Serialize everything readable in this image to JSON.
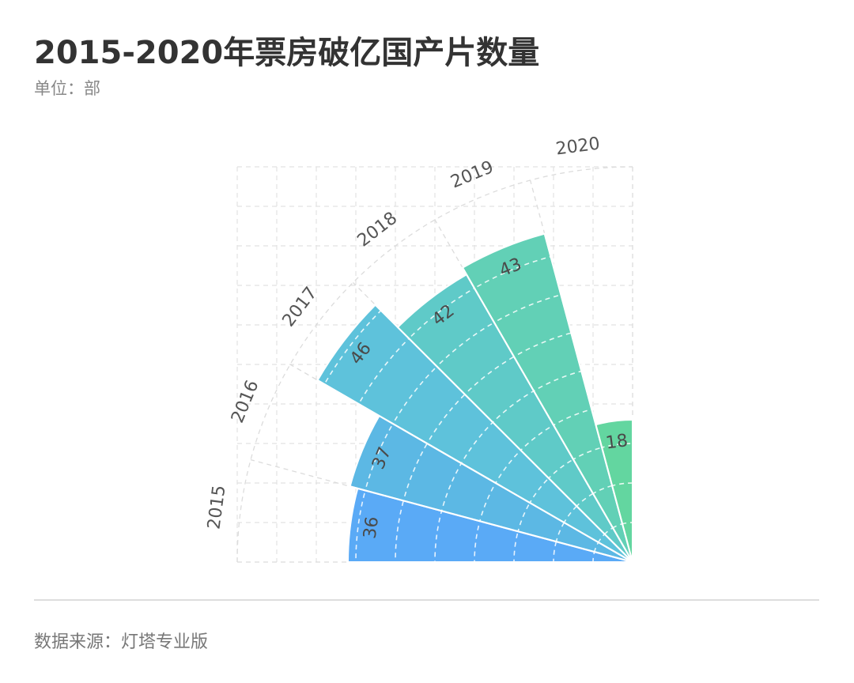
{
  "title": "2015-2020年票房破亿国产片数量",
  "unit": "单位：部",
  "source": "数据来源：灯塔专业版",
  "chart_data": {
    "type": "bar",
    "subtype": "polar-rose-quarter",
    "categories": [
      "2015",
      "2016",
      "2017",
      "2018",
      "2019",
      "2020"
    ],
    "values": [
      36,
      37,
      46,
      42,
      43,
      18
    ],
    "rmax": 50,
    "ring_step": 5,
    "colors": [
      "#5aaaf6",
      "#5cb8e4",
      "#5ec2db",
      "#5fcac8",
      "#62d0b6",
      "#63d6a0"
    ]
  }
}
